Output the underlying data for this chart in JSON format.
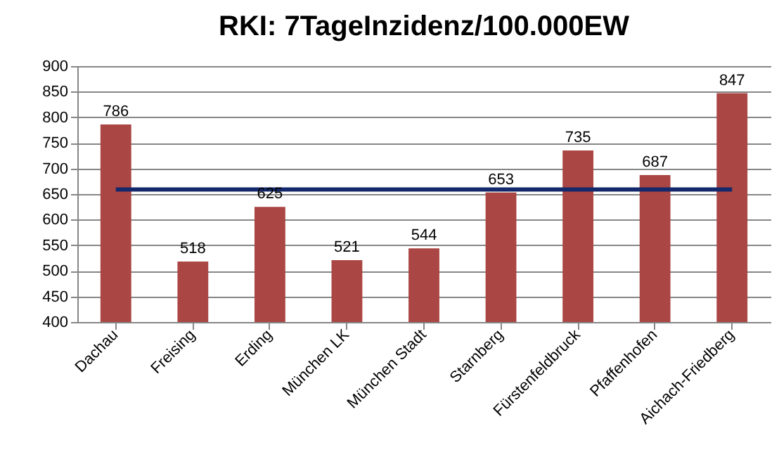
{
  "chart_data": {
    "type": "bar",
    "title": "RKI: 7TageInzidenz/100.000EW",
    "categories": [
      "Dachau",
      "Freising",
      "Erding",
      "München LK",
      "München Stadt",
      "Starnberg",
      "Fürstenfeldbruck",
      "Pfaffenhofen",
      "Aichach-Friedberg"
    ],
    "series": [
      {
        "color": "#aa4643",
        "values": [
          786,
          518,
          625,
          521,
          544,
          653,
          735,
          687,
          847
        ],
        "value_labels": [
          "786",
          "518",
          "625",
          "521",
          "544",
          "653",
          "735",
          "687",
          "847"
        ]
      },
      {
        "type": "line",
        "color": "#13296b",
        "values": [
          659,
          659,
          659,
          659,
          659,
          659,
          659,
          659,
          659
        ]
      }
    ],
    "ylim": [
      400,
      900
    ],
    "yticks": [
      400,
      450,
      500,
      550,
      600,
      650,
      700,
      750,
      800,
      850,
      900
    ],
    "grid": "y",
    "marker": "none"
  }
}
